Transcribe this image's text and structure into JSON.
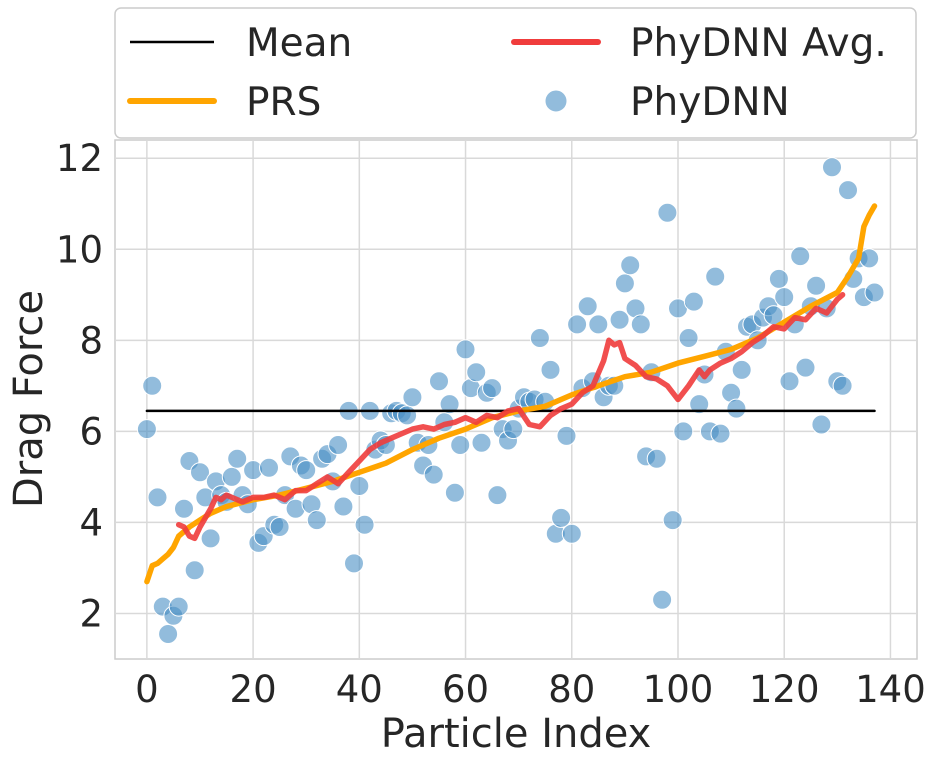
{
  "chart_data": {
    "type": "scatter",
    "title": "",
    "xlabel": "Particle Index",
    "ylabel": "Drag Force",
    "xlim": [
      -6,
      145
    ],
    "ylim": [
      1.0,
      12.4
    ],
    "xticks": [
      0,
      20,
      40,
      60,
      80,
      100,
      120,
      140
    ],
    "yticks": [
      2,
      4,
      6,
      8,
      10,
      12
    ],
    "xtick_labels": [
      "0",
      "20",
      "40",
      "60",
      "80",
      "100",
      "120",
      "140"
    ],
    "ytick_labels": [
      "2",
      "4",
      "6",
      "8",
      "10",
      "12"
    ],
    "grid": true,
    "legend_position": "top",
    "legend": [
      {
        "label": "Mean",
        "kind": "line",
        "color": "#000000"
      },
      {
        "label": "PhyDNN Avg.",
        "kind": "line",
        "color": "#f03c3c"
      },
      {
        "label": "PRS",
        "kind": "line",
        "color": "#ffa500"
      },
      {
        "label": "PhyDNN",
        "kind": "marker",
        "color": "#4a90c4"
      }
    ],
    "series": [
      {
        "name": "Mean",
        "type": "line",
        "color": "#000000",
        "x": [
          0,
          137
        ],
        "y": [
          6.45,
          6.45
        ]
      },
      {
        "name": "PRS",
        "type": "line",
        "color": "#ffa500",
        "x": [
          0,
          1,
          2,
          3,
          4,
          5,
          6,
          8,
          10,
          12,
          15,
          20,
          25,
          30,
          35,
          40,
          45,
          50,
          55,
          60,
          65,
          70,
          75,
          80,
          85,
          90,
          95,
          100,
          105,
          110,
          115,
          120,
          125,
          130,
          132,
          134,
          135,
          136,
          137
        ],
        "y": [
          2.7,
          3.05,
          3.1,
          3.2,
          3.3,
          3.45,
          3.7,
          3.9,
          4.05,
          4.2,
          4.35,
          4.5,
          4.6,
          4.75,
          4.9,
          5.1,
          5.3,
          5.6,
          5.85,
          6.05,
          6.3,
          6.45,
          6.55,
          6.8,
          7.0,
          7.2,
          7.3,
          7.5,
          7.65,
          7.8,
          8.05,
          8.4,
          8.75,
          9.05,
          9.4,
          9.8,
          10.5,
          10.75,
          10.95
        ]
      },
      {
        "name": "PhyDNN Avg.",
        "type": "line",
        "color": "#f03c3c",
        "x": [
          6,
          7,
          8,
          9,
          10,
          11,
          12,
          13,
          14,
          15,
          16,
          17,
          18,
          19,
          20,
          22,
          24,
          26,
          28,
          30,
          32,
          34,
          36,
          38,
          40,
          42,
          44,
          46,
          48,
          50,
          52,
          54,
          56,
          58,
          60,
          62,
          64,
          66,
          68,
          70,
          72,
          74,
          76,
          78,
          80,
          82,
          84,
          86,
          87,
          88,
          89,
          90,
          92,
          94,
          96,
          98,
          100,
          102,
          104,
          105,
          106,
          108,
          110,
          112,
          114,
          116,
          118,
          120,
          122,
          124,
          126,
          128,
          130,
          131
        ],
        "y": [
          3.95,
          3.9,
          3.7,
          3.65,
          3.9,
          4.1,
          4.3,
          4.55,
          4.5,
          4.6,
          4.55,
          4.5,
          4.45,
          4.5,
          4.55,
          4.55,
          4.6,
          4.5,
          4.7,
          4.7,
          4.85,
          5.0,
          4.85,
          5.1,
          5.35,
          5.6,
          5.75,
          5.85,
          5.95,
          6.05,
          6.1,
          6.05,
          6.15,
          6.2,
          6.3,
          6.2,
          6.35,
          6.3,
          6.45,
          6.5,
          6.15,
          6.1,
          6.35,
          6.5,
          6.6,
          6.85,
          7.0,
          7.55,
          8.0,
          7.9,
          7.95,
          7.6,
          7.45,
          7.2,
          7.15,
          7.0,
          6.7,
          7.0,
          7.35,
          7.2,
          7.35,
          7.5,
          7.6,
          7.75,
          7.95,
          8.1,
          8.3,
          8.25,
          8.5,
          8.45,
          8.7,
          8.6,
          8.9,
          9.0
        ]
      },
      {
        "name": "PhyDNN",
        "type": "scatter",
        "color": "#4a90c4",
        "x": [
          0,
          1,
          2,
          3,
          4,
          5,
          6,
          7,
          8,
          9,
          10,
          11,
          12,
          13,
          14,
          15,
          16,
          17,
          18,
          19,
          20,
          21,
          22,
          23,
          24,
          25,
          26,
          27,
          28,
          29,
          30,
          31,
          32,
          33,
          34,
          35,
          36,
          37,
          38,
          39,
          40,
          41,
          42,
          43,
          44,
          45,
          46,
          47,
          48,
          49,
          50,
          51,
          52,
          53,
          54,
          55,
          56,
          57,
          58,
          59,
          60,
          61,
          62,
          63,
          64,
          65,
          66,
          67,
          68,
          69,
          70,
          71,
          72,
          73,
          74,
          75,
          76,
          77,
          78,
          79,
          80,
          81,
          82,
          83,
          84,
          85,
          86,
          87,
          88,
          89,
          90,
          91,
          92,
          93,
          94,
          95,
          96,
          97,
          98,
          99,
          100,
          101,
          102,
          103,
          104,
          105,
          106,
          107,
          108,
          109,
          110,
          111,
          112,
          113,
          114,
          115,
          116,
          117,
          118,
          119,
          120,
          121,
          122,
          123,
          124,
          125,
          126,
          127,
          128,
          129,
          130,
          131,
          132,
          133,
          134,
          135,
          136,
          137
        ],
        "y": [
          6.05,
          7.0,
          4.55,
          2.15,
          1.55,
          1.95,
          2.15,
          4.3,
          5.35,
          2.95,
          5.1,
          4.55,
          3.65,
          4.9,
          4.6,
          4.45,
          5.0,
          5.4,
          4.6,
          4.4,
          5.15,
          3.55,
          3.7,
          5.2,
          3.95,
          3.9,
          4.6,
          5.45,
          4.3,
          5.25,
          5.15,
          4.4,
          4.05,
          5.4,
          5.5,
          4.9,
          5.7,
          4.35,
          6.45,
          3.1,
          4.8,
          3.95,
          6.45,
          5.6,
          5.8,
          5.7,
          6.4,
          6.45,
          6.4,
          6.35,
          6.75,
          5.75,
          5.25,
          5.7,
          5.05,
          7.1,
          6.2,
          6.6,
          4.65,
          5.7,
          7.8,
          6.95,
          7.3,
          5.75,
          6.85,
          6.95,
          4.6,
          6.05,
          5.8,
          6.05,
          6.5,
          6.75,
          6.65,
          6.7,
          8.05,
          6.65,
          7.35,
          3.75,
          4.1,
          5.9,
          3.75,
          8.35,
          6.95,
          8.75,
          7.1,
          8.35,
          6.75,
          7.0,
          7.0,
          8.45,
          9.25,
          9.65,
          8.7,
          8.35,
          5.45,
          7.3,
          5.4,
          2.3,
          10.8,
          4.05,
          8.7,
          6.0,
          8.05,
          8.85,
          6.6,
          7.25,
          6.0,
          9.4,
          5.95,
          7.75,
          6.85,
          6.5,
          7.35,
          8.3,
          8.35,
          8.0,
          8.5,
          8.75,
          8.55,
          9.35,
          8.95,
          7.1,
          8.35,
          9.85,
          7.4,
          8.75,
          9.2,
          6.15,
          8.7,
          11.8,
          7.1,
          7.0,
          11.3,
          9.35,
          9.8,
          8.95,
          9.8,
          9.05
        ]
      }
    ]
  }
}
